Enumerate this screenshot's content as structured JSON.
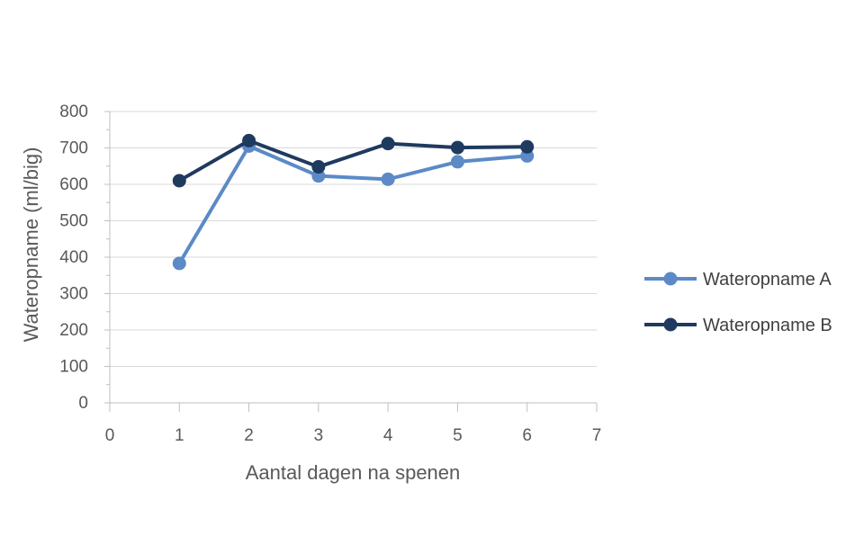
{
  "chart_data": {
    "type": "line",
    "title": "",
    "xlabel": "Aantal dagen na spenen",
    "ylabel": "Wateropname (ml/big)",
    "xlim": [
      0,
      7
    ],
    "ylim": [
      0,
      800
    ],
    "xticks": [
      0,
      1,
      2,
      3,
      4,
      5,
      6,
      7
    ],
    "yticks": [
      0,
      100,
      200,
      300,
      400,
      500,
      600,
      700,
      800
    ],
    "grid": true,
    "legend_position": "right",
    "series": [
      {
        "name": "Wateropname A",
        "color": "#5b8ac6",
        "x": [
          1,
          2,
          3,
          4,
          5,
          6
        ],
        "y": [
          383,
          705,
          623,
          614,
          662,
          678
        ]
      },
      {
        "name": "Wateropname B",
        "color": "#1f3a5f",
        "x": [
          1,
          2,
          3,
          4,
          5,
          6
        ],
        "y": [
          610,
          720,
          648,
          712,
          701,
          703
        ]
      }
    ]
  }
}
